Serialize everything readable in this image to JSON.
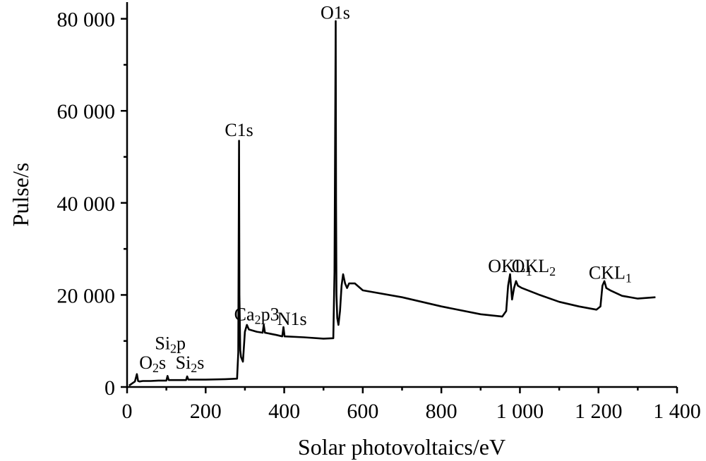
{
  "chart_data": {
    "type": "line",
    "title": "",
    "xlabel": "Solar photovoltaics/eV",
    "ylabel": "Pulse/s",
    "xlim": [
      0,
      1400
    ],
    "ylim": [
      0,
      85000
    ],
    "x_ticks": [
      0,
      200,
      400,
      600,
      800,
      1000,
      1200,
      1400
    ],
    "x_tick_labels": [
      "0",
      "200",
      "400",
      "600",
      "800",
      "1 000",
      "1 200",
      "1 400"
    ],
    "y_ticks": [
      0,
      20000,
      40000,
      60000,
      80000
    ],
    "y_tick_labels": [
      "0",
      "20 000",
      "40 000",
      "60 000",
      "80 000"
    ],
    "grid": false,
    "legend": "none",
    "series": [
      {
        "x": [
          5,
          10,
          20,
          25,
          28,
          32,
          40,
          60,
          80,
          100,
          103,
          106,
          120,
          150,
          153,
          156,
          200,
          250,
          280,
          283,
          285,
          286,
          288,
          290,
          295,
          300,
          305,
          310,
          330,
          345,
          348,
          351,
          380,
          395,
          398,
          401,
          450,
          500,
          525,
          528,
          531,
          532,
          533,
          535,
          538,
          542,
          546,
          550,
          555,
          560,
          565,
          580,
          600,
          700,
          800,
          900,
          955,
          965,
          970,
          975,
          980,
          985,
          990,
          995,
          1005,
          1050,
          1100,
          1150,
          1195,
          1205,
          1210,
          1215,
          1220,
          1230,
          1260,
          1300,
          1345
        ],
        "y": [
          300,
          600,
          1200,
          2800,
          1300,
          1200,
          1300,
          1300,
          1400,
          1400,
          2400,
          1500,
          1500,
          1500,
          2300,
          1600,
          1600,
          1700,
          1800,
          7500,
          53500,
          20000,
          8000,
          6500,
          5500,
          12000,
          13500,
          12500,
          12000,
          11800,
          13500,
          11800,
          11300,
          11000,
          13000,
          11000,
          10800,
          10500,
          10600,
          25000,
          79500,
          40000,
          20000,
          15000,
          13500,
          16500,
          22000,
          24500,
          22500,
          21500,
          22500,
          22500,
          21000,
          19500,
          17500,
          15800,
          15300,
          16500,
          22000,
          24500,
          19000,
          21500,
          23000,
          22000,
          21500,
          20000,
          18500,
          17500,
          16800,
          17500,
          22000,
          23000,
          21500,
          21000,
          19800,
          19200,
          19500
        ]
      }
    ],
    "annotations": [
      {
        "text": "O1s",
        "main": "O1s",
        "sub": "",
        "tail": "",
        "x": 530,
        "y": 80000
      },
      {
        "text": "C1s",
        "main": "C1s",
        "sub": "",
        "tail": "",
        "x": 285,
        "y": 54500
      },
      {
        "text": "OKL1",
        "main": "OKL",
        "sub": "1",
        "tail": "",
        "x": 975,
        "y": 25000
      },
      {
        "text": "OKL2",
        "main": "OKL",
        "sub": "2",
        "tail": "",
        "x": 1035,
        "y": 25000
      },
      {
        "text": "CKL1",
        "main": "CKL",
        "sub": "1",
        "tail": "",
        "x": 1230,
        "y": 23500
      },
      {
        "text": "Ca2p3",
        "main": "Ca",
        "sub": "2",
        "tail": "p3",
        "x": 330,
        "y": 14500
      },
      {
        "text": "N1s",
        "main": "N1s",
        "sub": "",
        "tail": "",
        "x": 420,
        "y": 13500
      },
      {
        "text": "Si2p",
        "main": "Si",
        "sub": "2",
        "tail": "p",
        "x": 110,
        "y": 8200
      },
      {
        "text": "O2s",
        "main": "O",
        "sub": "2",
        "tail": "s",
        "x": 65,
        "y": 4000
      },
      {
        "text": "Si2s",
        "main": "Si",
        "sub": "2",
        "tail": "s",
        "x": 160,
        "y": 4000
      }
    ]
  }
}
